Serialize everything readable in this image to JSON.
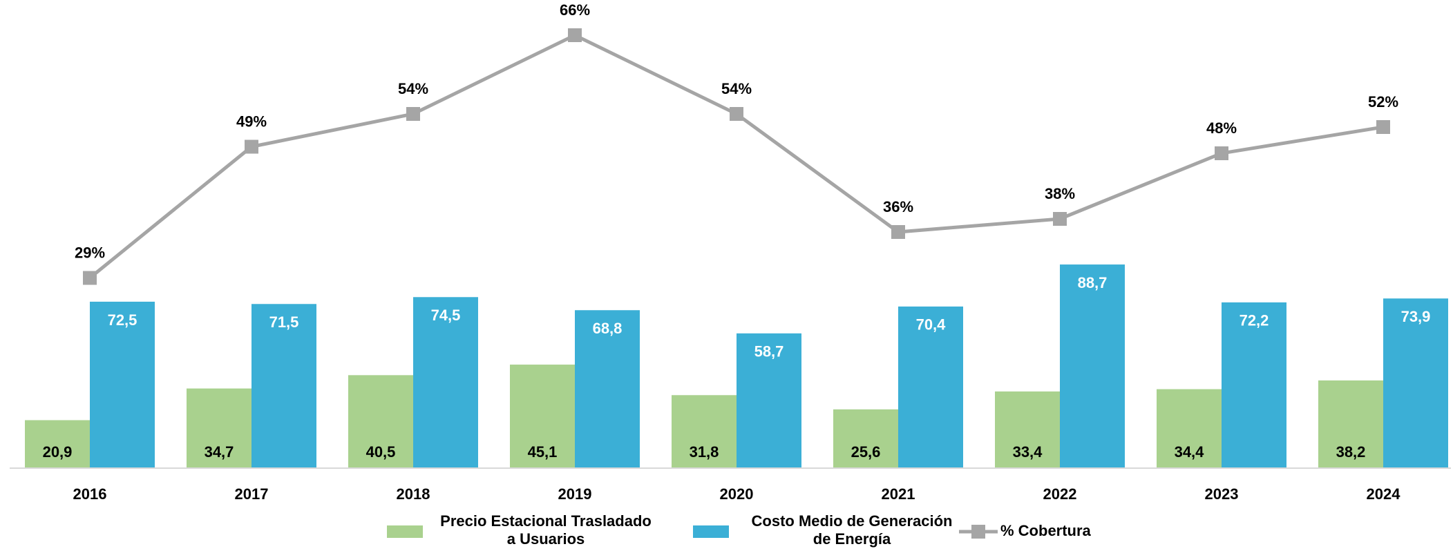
{
  "chart_data": {
    "type": "bar+line",
    "categories": [
      "2016",
      "2017",
      "2018",
      "2019",
      "2020",
      "2021",
      "2022",
      "2023",
      "2024"
    ],
    "series": [
      {
        "name": "Precio Estacional Trasladado a Usuarios",
        "color": "#a9d18e",
        "type": "bar",
        "values": [
          20.9,
          34.7,
          40.5,
          45.1,
          31.8,
          25.6,
          33.4,
          34.4,
          38.2
        ],
        "value_labels": [
          "20,9",
          "34,7",
          "40,5",
          "45,1",
          "31,8",
          "25,6",
          "33,4",
          "34,4",
          "38,2"
        ]
      },
      {
        "name": "Costo Medio de Generación de Energía",
        "color": "#3bafd6",
        "type": "bar",
        "values": [
          72.5,
          71.5,
          74.5,
          68.8,
          58.7,
          70.4,
          88.7,
          72.2,
          73.9
        ],
        "value_labels": [
          "72,5",
          "71,5",
          "74,5",
          "68,8",
          "58,7",
          "70,4",
          "88,7",
          "72,2",
          "73,9"
        ]
      },
      {
        "name": "% Cobertura",
        "color": "#a5a5a5",
        "type": "line",
        "axis": "y2",
        "values": [
          29,
          49,
          54,
          66,
          54,
          36,
          38,
          48,
          52
        ],
        "value_labels": [
          "29%",
          "49%",
          "54%",
          "66%",
          "54%",
          "36%",
          "38%",
          "48%",
          "52%"
        ]
      }
    ],
    "ylim": [
      0,
      200
    ],
    "y2lim": [
      0,
      70
    ],
    "legend": "bottom"
  }
}
